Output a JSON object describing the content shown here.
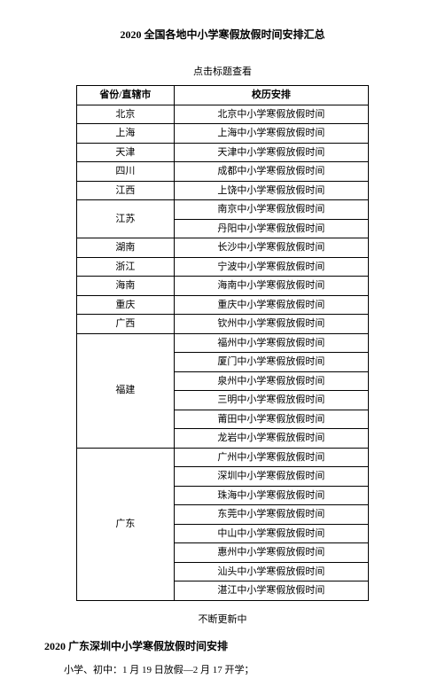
{
  "main_title": "2020 全国各地中小学寒假放假时间安排汇总",
  "sub_title": "点击标题查看",
  "table": {
    "headers": {
      "province": "省份/直辖市",
      "schedule": "校历安排"
    },
    "rows": [
      {
        "province": "北京",
        "schedules": [
          "北京中小学寒假放假时间"
        ]
      },
      {
        "province": "上海",
        "schedules": [
          "上海中小学寒假放假时间"
        ]
      },
      {
        "province": "天津",
        "schedules": [
          "天津中小学寒假放假时间"
        ]
      },
      {
        "province": "四川",
        "schedules": [
          "成都中小学寒假放假时间"
        ]
      },
      {
        "province": "江西",
        "schedules": [
          "上饶中小学寒假放假时间"
        ]
      },
      {
        "province": "江苏",
        "schedules": [
          "南京中小学寒假放假时间",
          "丹阳中小学寒假放假时间"
        ]
      },
      {
        "province": "湖南",
        "schedules": [
          "长沙中小学寒假放假时间"
        ]
      },
      {
        "province": "浙江",
        "schedules": [
          "宁波中小学寒假放假时间"
        ]
      },
      {
        "province": "海南",
        "schedules": [
          "海南中小学寒假放假时间"
        ]
      },
      {
        "province": "重庆",
        "schedules": [
          "重庆中小学寒假放假时间"
        ]
      },
      {
        "province": "广西",
        "schedules": [
          "钦州中小学寒假放假时间"
        ]
      },
      {
        "province": "福建",
        "schedules": [
          "福州中小学寒假放假时间",
          "厦门中小学寒假放假时间",
          "泉州中小学寒假放假时间",
          "三明中小学寒假放假时间",
          "莆田中小学寒假放假时间",
          "龙岩中小学寒假放假时间"
        ]
      },
      {
        "province": "广东",
        "schedules": [
          "广州中小学寒假放假时间",
          "深圳中小学寒假放假时间",
          "珠海中小学寒假放假时间",
          "东莞中小学寒假放假时间",
          "中山中小学寒假放假时间",
          "惠州中小学寒假放假时间",
          "汕头中小学寒假放假时间",
          "湛江中小学寒假放假时间"
        ]
      }
    ]
  },
  "updating_text": "不断更新中",
  "section_title": "2020 广东深圳中小学寒假放假时间安排",
  "body_text": "小学、初中：1 月 19 日放假—2 月 17 开学；"
}
